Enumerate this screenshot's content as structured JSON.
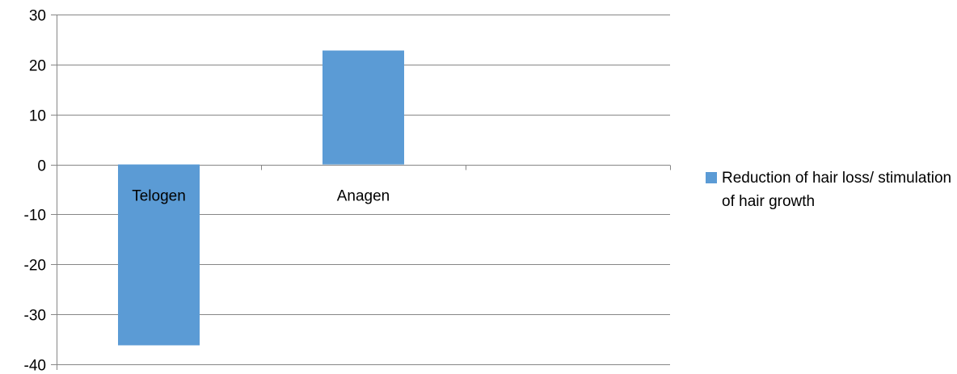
{
  "chart_data": {
    "type": "bar",
    "categories": [
      "Telogen",
      "Anagen",
      ""
    ],
    "series": [
      {
        "name": "Reduction of hair loss/ stimulation of hair growth",
        "values": [
          -36.2,
          22.8,
          null
        ],
        "color": "#5B9BD5"
      }
    ],
    "title": "",
    "xlabel": "",
    "ylabel": "",
    "ylim": [
      -40,
      30
    ],
    "yticks": [
      30,
      20,
      10,
      0,
      -10,
      -20,
      -30,
      -40
    ],
    "grid": true,
    "legend_position": "right",
    "gridline_color": "#868686"
  }
}
